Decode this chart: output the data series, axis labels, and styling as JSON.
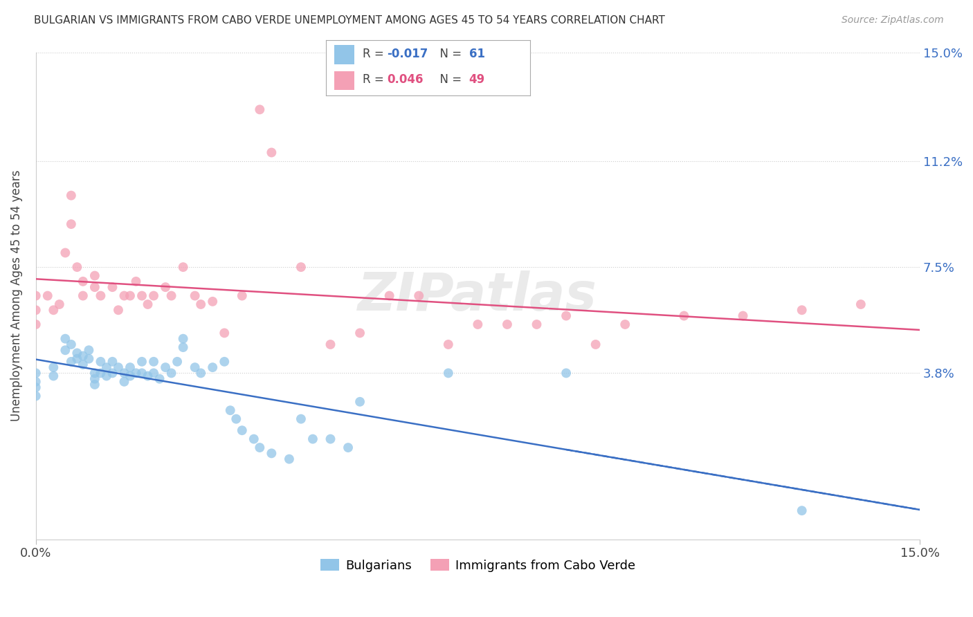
{
  "title": "BULGARIAN VS IMMIGRANTS FROM CABO VERDE UNEMPLOYMENT AMONG AGES 45 TO 54 YEARS CORRELATION CHART",
  "source": "Source: ZipAtlas.com",
  "ylabel": "Unemployment Among Ages 45 to 54 years",
  "xmin": 0.0,
  "xmax": 0.15,
  "ymin": -0.02,
  "ymax": 0.15,
  "yticks_right": [
    0.038,
    0.075,
    0.112,
    0.15
  ],
  "ytick_labels_right": [
    "3.8%",
    "7.5%",
    "11.2%",
    "15.0%"
  ],
  "legend_R_blue": "-0.017",
  "legend_N_blue": "61",
  "legend_R_pink": "0.046",
  "legend_N_pink": "49",
  "blue_color": "#92c5e8",
  "pink_color": "#f4a0b5",
  "trend_blue_color": "#3a6fc4",
  "trend_pink_color": "#e05080",
  "blue_scatter_x": [
    0.0,
    0.0,
    0.0,
    0.0,
    0.003,
    0.003,
    0.005,
    0.005,
    0.006,
    0.006,
    0.007,
    0.007,
    0.008,
    0.008,
    0.009,
    0.009,
    0.01,
    0.01,
    0.01,
    0.011,
    0.011,
    0.012,
    0.012,
    0.013,
    0.013,
    0.014,
    0.015,
    0.015,
    0.016,
    0.016,
    0.017,
    0.018,
    0.018,
    0.019,
    0.02,
    0.02,
    0.021,
    0.022,
    0.023,
    0.024,
    0.025,
    0.025,
    0.027,
    0.028,
    0.03,
    0.032,
    0.033,
    0.034,
    0.035,
    0.037,
    0.038,
    0.04,
    0.043,
    0.045,
    0.047,
    0.05,
    0.053,
    0.055,
    0.07,
    0.09,
    0.13
  ],
  "blue_scatter_y": [
    0.038,
    0.035,
    0.033,
    0.03,
    0.04,
    0.037,
    0.05,
    0.046,
    0.048,
    0.042,
    0.045,
    0.043,
    0.044,
    0.041,
    0.046,
    0.043,
    0.038,
    0.036,
    0.034,
    0.042,
    0.038,
    0.04,
    0.037,
    0.042,
    0.038,
    0.04,
    0.038,
    0.035,
    0.04,
    0.037,
    0.038,
    0.042,
    0.038,
    0.037,
    0.042,
    0.038,
    0.036,
    0.04,
    0.038,
    0.042,
    0.05,
    0.047,
    0.04,
    0.038,
    0.04,
    0.042,
    0.025,
    0.022,
    0.018,
    0.015,
    0.012,
    0.01,
    0.008,
    0.022,
    0.015,
    0.015,
    0.012,
    0.028,
    0.038,
    0.038,
    -0.01
  ],
  "pink_scatter_x": [
    0.0,
    0.0,
    0.0,
    0.002,
    0.003,
    0.004,
    0.005,
    0.006,
    0.006,
    0.007,
    0.008,
    0.008,
    0.01,
    0.01,
    0.011,
    0.013,
    0.014,
    0.015,
    0.016,
    0.017,
    0.018,
    0.019,
    0.02,
    0.022,
    0.023,
    0.025,
    0.027,
    0.028,
    0.03,
    0.032,
    0.035,
    0.038,
    0.04,
    0.045,
    0.05,
    0.055,
    0.06,
    0.065,
    0.07,
    0.075,
    0.08,
    0.085,
    0.09,
    0.095,
    0.1,
    0.11,
    0.12,
    0.13,
    0.14
  ],
  "pink_scatter_y": [
    0.065,
    0.06,
    0.055,
    0.065,
    0.06,
    0.062,
    0.08,
    0.09,
    0.1,
    0.075,
    0.07,
    0.065,
    0.072,
    0.068,
    0.065,
    0.068,
    0.06,
    0.065,
    0.065,
    0.07,
    0.065,
    0.062,
    0.065,
    0.068,
    0.065,
    0.075,
    0.065,
    0.062,
    0.063,
    0.052,
    0.065,
    0.13,
    0.115,
    0.075,
    0.048,
    0.052,
    0.065,
    0.065,
    0.048,
    0.055,
    0.055,
    0.055,
    0.058,
    0.048,
    0.055,
    0.058,
    0.058,
    0.06,
    0.062
  ]
}
